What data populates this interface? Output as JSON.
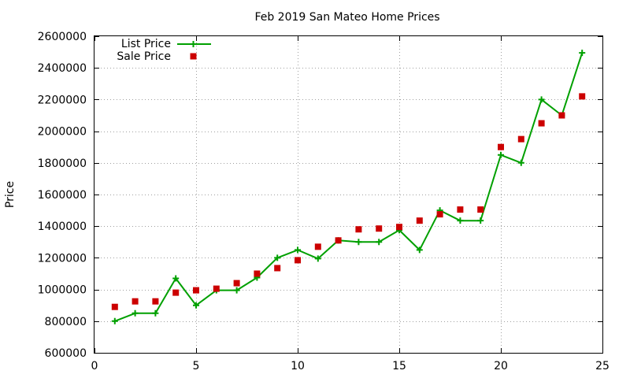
{
  "chart_data": {
    "type": "line",
    "title": "Feb 2019 San Mateo Home Prices",
    "xlabel": "",
    "ylabel": "Price",
    "xlim": [
      0,
      25
    ],
    "ylim": [
      600000,
      2600000
    ],
    "xticks": [
      "0",
      "5",
      "10",
      "15",
      "20",
      "25"
    ],
    "yticks": [
      "600000",
      "800000",
      "1000000",
      "1200000",
      "1400000",
      "1600000",
      "1800000",
      "2000000",
      "2200000",
      "2400000",
      "2600000"
    ],
    "grid": true,
    "legend_position": "top-left",
    "series": [
      {
        "name": "List Price",
        "style": "line+cross",
        "color": "#00a000",
        "x": [
          1,
          2,
          3,
          4,
          5,
          6,
          7,
          8,
          9,
          10,
          11,
          12,
          13,
          14,
          15,
          16,
          17,
          18,
          19,
          20,
          21,
          22,
          23,
          24
        ],
        "y": [
          800000,
          850000,
          850000,
          1070000,
          900000,
          995000,
          995000,
          1075000,
          1200000,
          1250000,
          1195000,
          1310000,
          1300000,
          1300000,
          1375000,
          1250000,
          1500000,
          1435000,
          1435000,
          1850000,
          1800000,
          2200000,
          2100000,
          2495000
        ]
      },
      {
        "name": "Sale Price",
        "style": "square",
        "color": "#cc0000",
        "x": [
          1,
          2,
          3,
          4,
          5,
          6,
          7,
          8,
          9,
          10,
          11,
          12,
          13,
          14,
          15,
          16,
          17,
          18,
          19,
          20,
          21,
          22,
          23,
          24
        ],
        "y": [
          890000,
          925000,
          925000,
          980000,
          995000,
          1005000,
          1040000,
          1100000,
          1135000,
          1185000,
          1270000,
          1310000,
          1380000,
          1385000,
          1395000,
          1435000,
          1475000,
          1505000,
          1505000,
          1900000,
          1950000,
          2050000,
          2100000,
          2220000
        ]
      }
    ]
  }
}
